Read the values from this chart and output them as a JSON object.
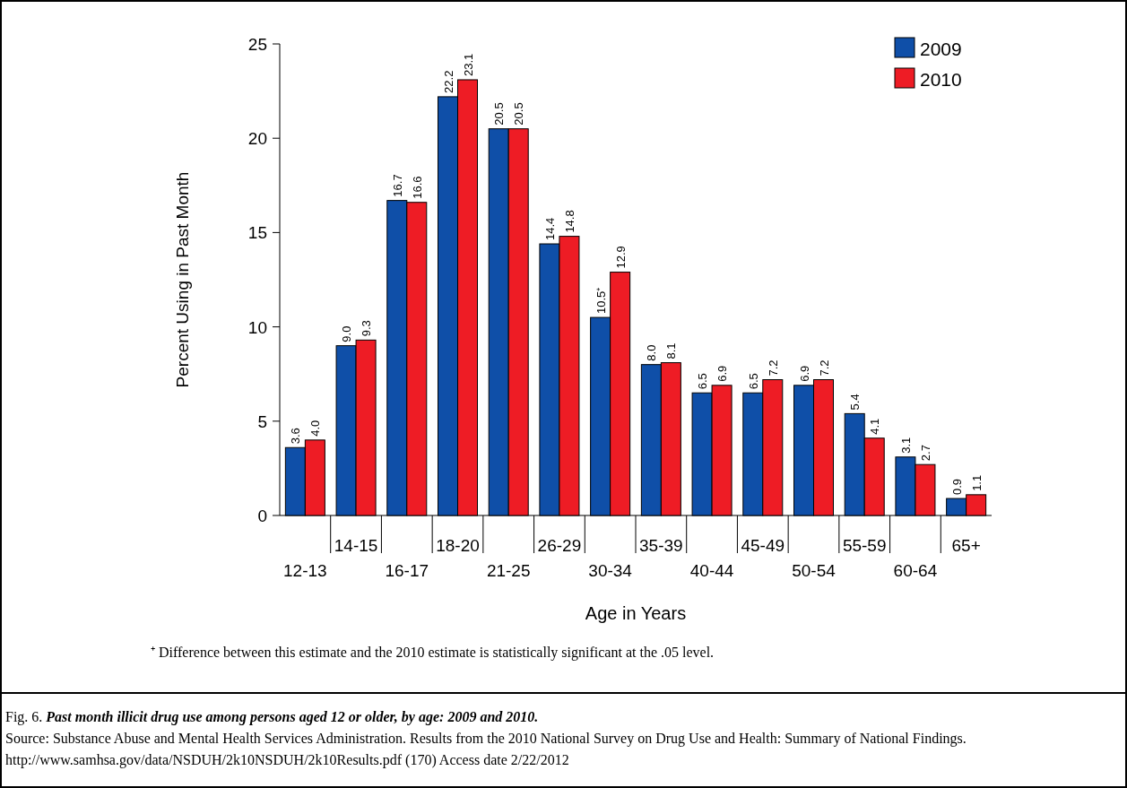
{
  "chart_data": {
    "type": "bar",
    "title": "Fig. 6. Past month illicit drug use among persons aged 12 or older, by age: 2009 and 2010.",
    "xlabel": "Age in Years",
    "ylabel": "Percent Using in Past Month",
    "categories": [
      "12-13",
      "14-15",
      "16-17",
      "18-20",
      "21-25",
      "26-29",
      "30-34",
      "35-39",
      "40-44",
      "45-49",
      "50-54",
      "55-59",
      "60-64",
      "65+"
    ],
    "series": [
      {
        "name": "2009",
        "color": "#0f4fa8",
        "values": [
          3.6,
          9.0,
          16.7,
          22.2,
          20.5,
          14.4,
          10.5,
          8.0,
          6.5,
          6.5,
          6.9,
          5.4,
          3.1,
          0.9
        ],
        "value_labels": [
          "3.6",
          "9.0",
          "16.7",
          "22.2",
          "20.5",
          "14.4",
          "10.5⁺",
          "8.0",
          "6.5",
          "6.5",
          "6.9",
          "5.4",
          "3.1",
          "0.9"
        ]
      },
      {
        "name": "2010",
        "color": "#ee1c25",
        "values": [
          4.0,
          9.3,
          16.6,
          23.1,
          20.5,
          14.8,
          12.9,
          8.1,
          6.9,
          7.2,
          7.2,
          4.1,
          2.7,
          1.1
        ],
        "value_labels": [
          "4.0",
          "9.3",
          "16.6",
          "23.1",
          "20.5",
          "14.8",
          "12.9",
          "8.1",
          "6.9",
          "7.2",
          "7.2",
          "4.1",
          "2.7",
          "1.1"
        ]
      }
    ],
    "ylim": [
      0,
      25
    ],
    "yticks": [
      0,
      5,
      10,
      15,
      20,
      25
    ],
    "legend": "top right",
    "annotations": [
      "⁺ Difference between this estimate and the 2010 estimate is statistically significant at the .05 level.",
      "Source: Substance Abuse and Mental Health Services Administration. Results from the 2010 National Survey on Drug Use and Health: Summary of National Findings. http://www.samhsa.gov/data/NSDUH/2k10NSDUH/2k10Results.pdf (170) Access date 2/22/2012"
    ]
  }
}
